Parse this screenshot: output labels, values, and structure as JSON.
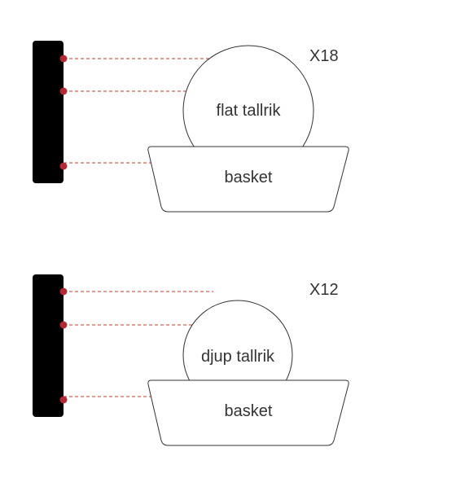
{
  "colors": {
    "bar": "#000000",
    "marker": "#b22a35",
    "guide": "#c0392b",
    "outline": "#333333",
    "text": "#333333"
  },
  "diagrams": [
    {
      "count_label": "X18",
      "plate_label": "flat tallrik",
      "basket_label": "basket"
    },
    {
      "count_label": "X12",
      "plate_label": "djup tallrik",
      "basket_label": "basket"
    }
  ]
}
